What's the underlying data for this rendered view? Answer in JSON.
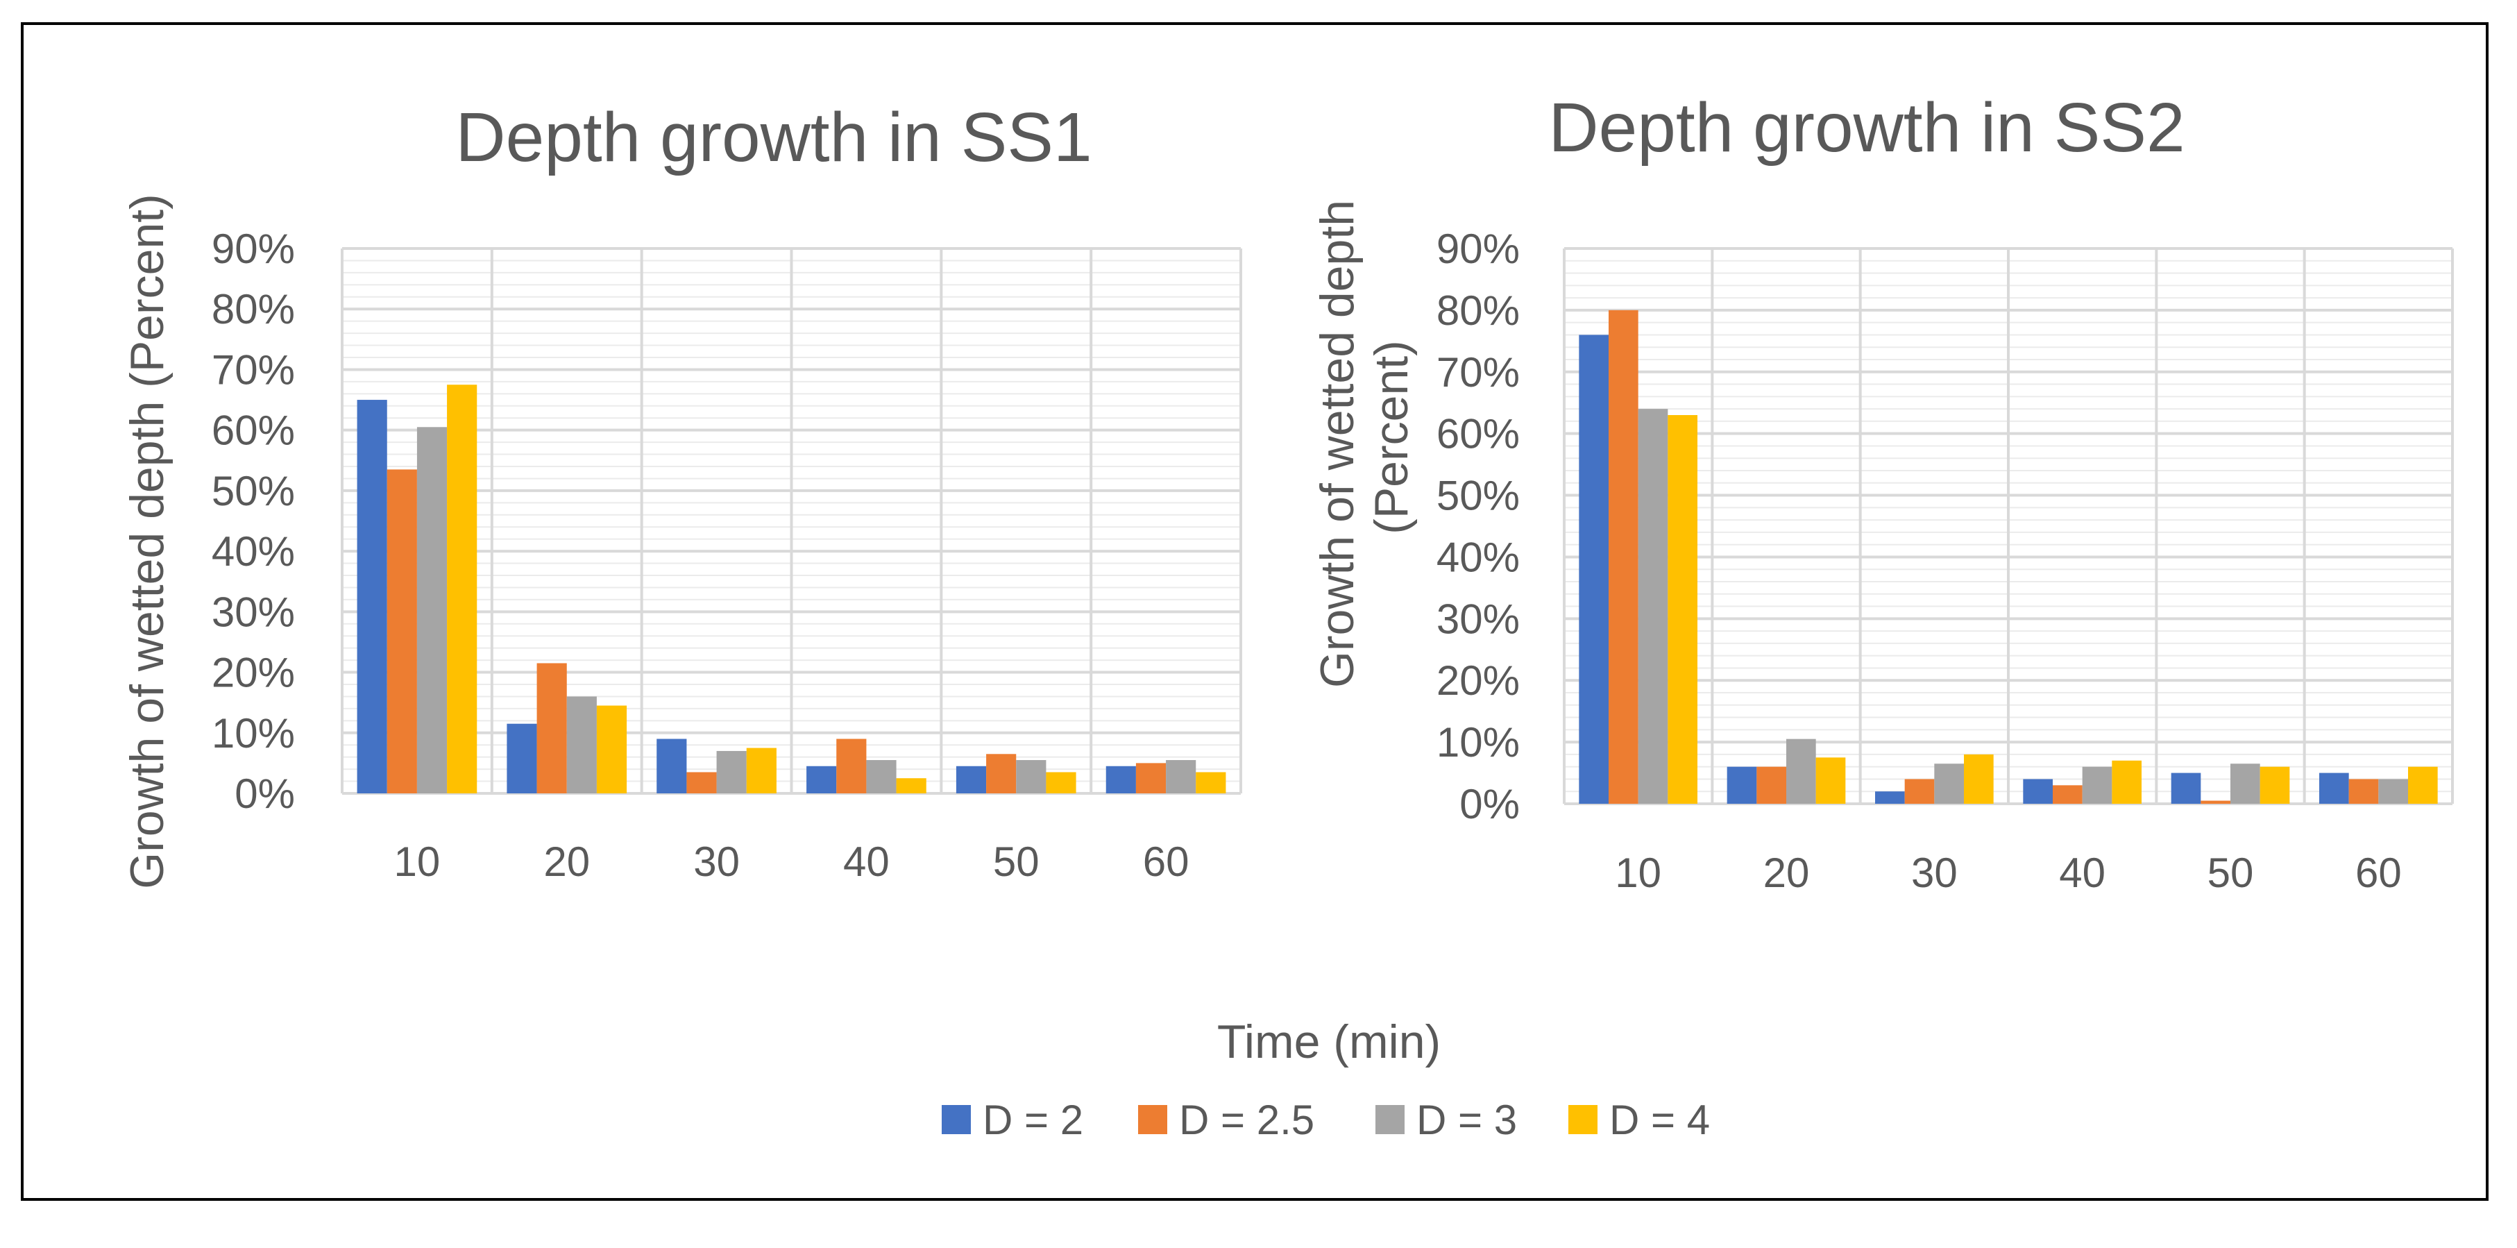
{
  "chart_data": [
    {
      "type": "bar",
      "title": "Depth growth in SS1",
      "xlabel": "Time (min)",
      "ylabel": "Growth of wetted depth (Percent)",
      "ylim": [
        0,
        90
      ],
      "ytick_labels": [
        "0%",
        "10%",
        "20%",
        "30%",
        "40%",
        "50%",
        "60%",
        "70%",
        "80%",
        "90%"
      ],
      "categories": [
        "10",
        "20",
        "30",
        "40",
        "50",
        "60"
      ],
      "series": [
        {
          "name": "D = 2",
          "values": [
            65,
            11.5,
            9,
            4.5,
            4.5,
            4.5
          ]
        },
        {
          "name": "D = 2.5",
          "values": [
            53.5,
            21.5,
            3.5,
            9,
            6.5,
            5
          ]
        },
        {
          "name": "D = 3",
          "values": [
            60.5,
            16,
            7,
            5.5,
            5.5,
            5.5
          ]
        },
        {
          "name": "D = 4",
          "values": [
            67.5,
            14.5,
            7.5,
            2.5,
            3.5,
            3.5
          ]
        }
      ]
    },
    {
      "type": "bar",
      "title": "Depth growth in SS2",
      "xlabel": "Time (min)",
      "ylabel": "Growth of wetted depth (Percent)",
      "ylim": [
        0,
        90
      ],
      "ytick_labels": [
        "0%",
        "10%",
        "20%",
        "30%",
        "40%",
        "50%",
        "60%",
        "70%",
        "80%",
        "90%"
      ],
      "categories": [
        "10",
        "20",
        "30",
        "40",
        "50",
        "60"
      ],
      "series": [
        {
          "name": "D = 2",
          "values": [
            76,
            6,
            2,
            4,
            5,
            5
          ]
        },
        {
          "name": "D = 2.5",
          "values": [
            80,
            6,
            4,
            3,
            0.5,
            4
          ]
        },
        {
          "name": "D = 3",
          "values": [
            64,
            10.5,
            6.5,
            6,
            6.5,
            4
          ]
        },
        {
          "name": "D = 4",
          "values": [
            63,
            7.5,
            8,
            7,
            6,
            6
          ]
        }
      ]
    }
  ],
  "shared_xlabel": "Time (min)",
  "legend": [
    {
      "label": "D = 2",
      "color": "#4472C4"
    },
    {
      "label": "D = 2.5",
      "color": "#ED7D31"
    },
    {
      "label": "D = 3",
      "color": "#A5A5A5"
    },
    {
      "label": "D = 4",
      "color": "#FFC000"
    }
  ]
}
